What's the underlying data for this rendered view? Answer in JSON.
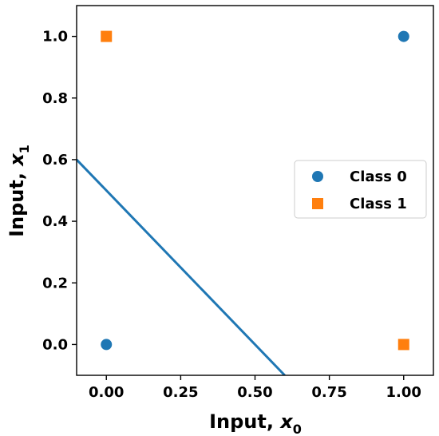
{
  "chart_data": {
    "type": "scatter",
    "xlabel": "Input, ",
    "xlabel_var": "x",
    "xlabel_sub": "0",
    "ylabel": "Input, ",
    "ylabel_var": "x",
    "ylabel_sub": "1",
    "xlim": [
      -0.1,
      1.1
    ],
    "ylim": [
      -0.1,
      1.1
    ],
    "xticks": [
      0.0,
      0.25,
      0.5,
      0.75,
      1.0
    ],
    "xtick_labels": [
      "0.00",
      "0.25",
      "0.50",
      "0.75",
      "1.00"
    ],
    "yticks": [
      0.0,
      0.2,
      0.4,
      0.6,
      0.8,
      1.0
    ],
    "ytick_labels": [
      "0.0",
      "0.2",
      "0.4",
      "0.6",
      "0.8",
      "1.0"
    ],
    "grid": false,
    "legend_position": "center-right",
    "series": [
      {
        "name": "Class 0",
        "marker": "circle",
        "color": "#1f77b4",
        "points": [
          {
            "x": 0.0,
            "y": 0.0
          },
          {
            "x": 1.0,
            "y": 1.0
          }
        ]
      },
      {
        "name": "Class 1",
        "marker": "square",
        "color": "#ff7f0e",
        "points": [
          {
            "x": 0.0,
            "y": 1.0
          },
          {
            "x": 1.0,
            "y": 0.0
          }
        ]
      }
    ],
    "lines": [
      {
        "color": "#1f77b4",
        "points": [
          {
            "x": -0.1,
            "y": 0.6
          },
          {
            "x": 0.6,
            "y": -0.1
          }
        ]
      }
    ]
  }
}
